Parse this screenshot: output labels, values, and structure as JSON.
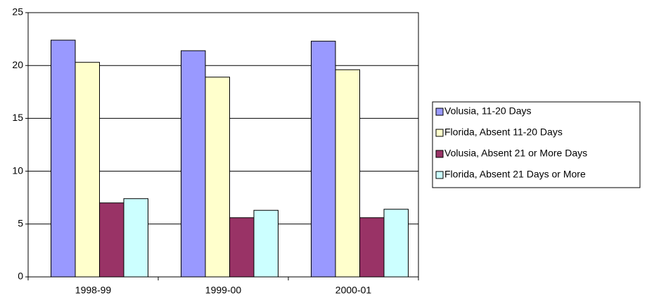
{
  "chart_data": {
    "type": "bar",
    "categories": [
      "1998-99",
      "1999-00",
      "2000-01"
    ],
    "series": [
      {
        "name": "Volusia, 11-20 Days",
        "color": "#9999ff",
        "values": [
          22.4,
          21.4,
          22.3
        ]
      },
      {
        "name": "Florida, Absent 11-20 Days",
        "color": "#ffffcc",
        "values": [
          20.3,
          18.9,
          19.6
        ]
      },
      {
        "name": "Volusia, Absent 21 or More Days",
        "color": "#993366",
        "values": [
          7.0,
          5.6,
          5.6
        ]
      },
      {
        "name": "Florida, Absent 21 Days or More",
        "color": "#ccffff",
        "values": [
          7.4,
          6.3,
          6.4
        ]
      }
    ],
    "ylim": [
      0,
      25
    ],
    "yticks": [
      0,
      5,
      10,
      15,
      20,
      25
    ],
    "grid": true,
    "legend": "right"
  }
}
